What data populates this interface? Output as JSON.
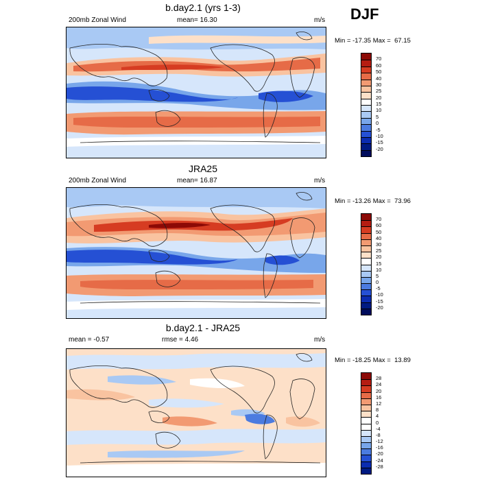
{
  "season": "DJF",
  "colors": {
    "warm": [
      "#fde0c8",
      "#f9c3a0",
      "#f29a72",
      "#e66b47",
      "#d63c22",
      "#b51d12",
      "#8c0a06"
    ],
    "neutral": "#ffffff",
    "cool": [
      "#d6e6fb",
      "#a9c9f4",
      "#78a6ea",
      "#4b7be0",
      "#2550d4",
      "#0b2cb0",
      "#001a82"
    ],
    "continent": "#222222"
  },
  "panels": [
    {
      "title": "b.day2.1 (yrs 1-3)",
      "left_label": "200mb Zonal Wind",
      "mid_label": "mean=  16.30",
      "units": "m/s",
      "minmax": "Min = -17.35 Max =  67.15",
      "levels": [
        "70",
        "60",
        "50",
        "40",
        "30",
        "25",
        "20",
        "15",
        "10",
        "5",
        "0",
        "-5",
        "-10",
        "-15",
        "-20"
      ],
      "colors": [
        "#8c0a06",
        "#b51d12",
        "#d63c22",
        "#e66b47",
        "#f29a72",
        "#f9c3a0",
        "#fde0c8",
        "#ffffff",
        "#d6e6fb",
        "#a9c9f4",
        "#78a6ea",
        "#4b7be0",
        "#2550d4",
        "#0b2cb0",
        "#001a82",
        "#000c5c"
      ]
    },
    {
      "title": "JRA25",
      "left_label": "200mb Zonal Wind",
      "mid_label": "mean=  16.87",
      "units": "m/s",
      "minmax": "Min = -13.26 Max =  73.96",
      "levels": [
        "70",
        "60",
        "50",
        "40",
        "30",
        "25",
        "20",
        "15",
        "10",
        "5",
        "0",
        "-5",
        "-10",
        "-15",
        "-20"
      ],
      "colors": [
        "#8c0a06",
        "#b51d12",
        "#d63c22",
        "#e66b47",
        "#f29a72",
        "#f9c3a0",
        "#fde0c8",
        "#ffffff",
        "#d6e6fb",
        "#a9c9f4",
        "#78a6ea",
        "#4b7be0",
        "#2550d4",
        "#0b2cb0",
        "#001a82",
        "#000c5c"
      ]
    },
    {
      "title": "b.day2.1 - JRA25",
      "left_label": "mean =  -0.57",
      "mid_label": "rmse =   4.46",
      "units": "m/s",
      "minmax": "Min = -18.25 Max =  13.89",
      "levels": [
        "28",
        "24",
        "20",
        "16",
        "12",
        "8",
        "4",
        "0",
        "-4",
        "-8",
        "-12",
        "-16",
        "-20",
        "-24",
        "-28"
      ],
      "colors": [
        "#8c0a06",
        "#b51d12",
        "#d63c22",
        "#e66b47",
        "#f29a72",
        "#f9c3a0",
        "#fde0c8",
        "#ffffff",
        "#ffffff",
        "#d6e6fb",
        "#a9c9f4",
        "#78a6ea",
        "#4b7be0",
        "#2550d4",
        "#0b2cb0",
        "#001a82"
      ]
    }
  ]
}
